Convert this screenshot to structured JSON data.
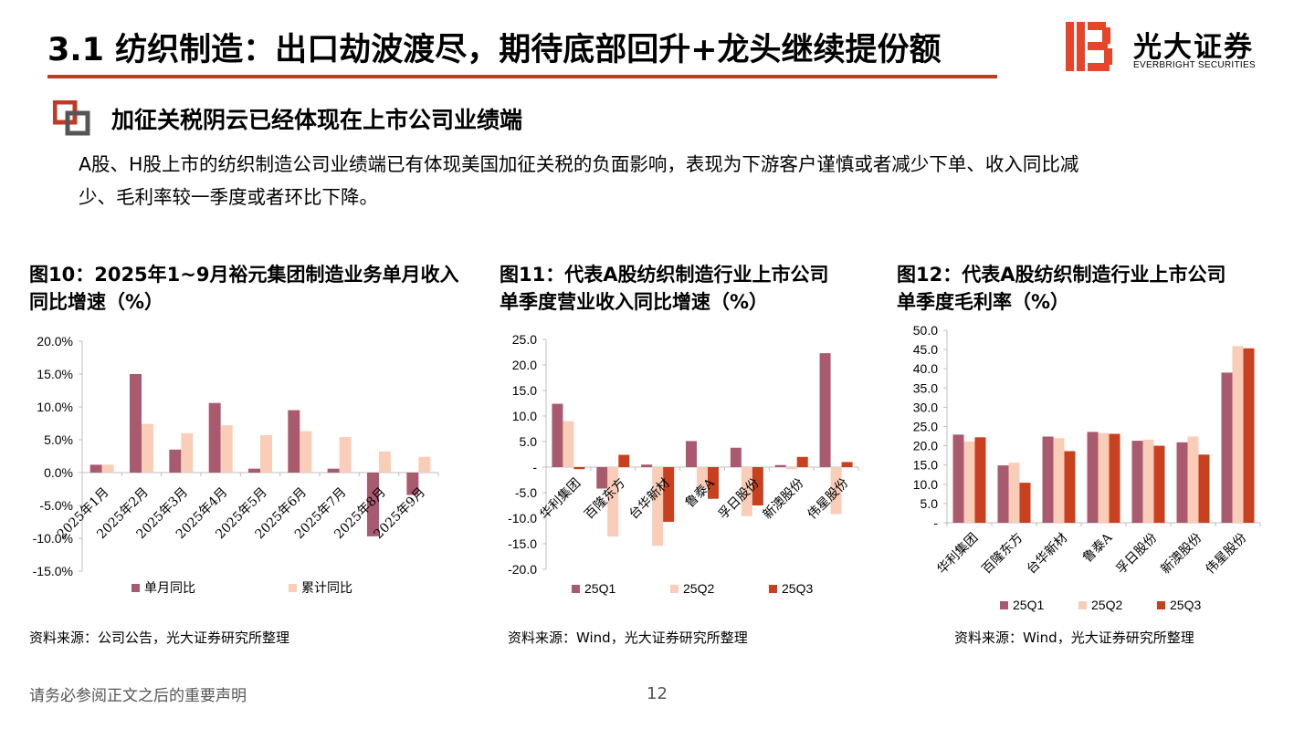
{
  "page": {
    "title": "3.1 纺织制造：出口劫波渡尽，期待底部回升+龙头继续提份额",
    "logo_cn": "光大证券",
    "logo_en": "EVERBRIGHT SECURITIES",
    "section_heading": "加征关税阴云已经体现在上市公司业绩端",
    "body_line1": "A股、H股上市的纺织制造公司业绩端已有体现美国加征关税的负面影响，表现为下游客户谨慎或者减少下单、收入同比减",
    "body_line2": "少、毛利率较一季度或者环比下降。",
    "footer_note": "请务必参阅正文之后的重要声明",
    "page_number": "12",
    "colors": {
      "accent": "#c23a26",
      "series1": "#a95a6f",
      "series2": "#f9cdb8",
      "series3": "#c9401f"
    }
  },
  "chart_data": [
    {
      "type": "bar",
      "title_line1": "图10：2025年1~9月裕元集团制造业务单月收入",
      "title_line2": "同比增速（%）",
      "categories": [
        "2025年1月",
        "2025年2月",
        "2025年3月",
        "2025年4月",
        "2025年5月",
        "2025年6月",
        "2025年7月",
        "2025年8月",
        "2025年9月"
      ],
      "series": [
        {
          "name": "单月同比",
          "values": [
            1.2,
            15.0,
            3.5,
            10.6,
            0.6,
            9.5,
            0.6,
            -9.7,
            -3.4
          ]
        },
        {
          "name": "累计同比",
          "values": [
            1.2,
            7.4,
            6.0,
            7.2,
            5.7,
            6.3,
            5.4,
            3.2,
            2.4
          ]
        }
      ],
      "ylim": [
        -15,
        20
      ],
      "yticks": [
        "20.0%",
        "15.0%",
        "10.0%",
        "5.0%",
        "0.0%",
        "-5.0%",
        "-10.0%",
        "-15.0%"
      ],
      "source": "资料来源：公司公告，光大证券研究所整理"
    },
    {
      "type": "bar",
      "title_line1": "图11：代表A股纺织制造行业上市公司",
      "title_line2": "单季度营业收入同比增速（%）",
      "categories": [
        "华利集团",
        "百隆东方",
        "台华新材",
        "鲁泰A",
        "孚日股份",
        "新澳股份",
        "伟星股份"
      ],
      "series": [
        {
          "name": "25Q1",
          "values": [
            12.4,
            -4.2,
            0.5,
            5.1,
            3.8,
            0.4,
            22.3
          ]
        },
        {
          "name": "25Q2",
          "values": [
            9.0,
            -13.6,
            -15.4,
            -4.2,
            -9.6,
            -0.4,
            -9.2
          ]
        },
        {
          "name": "25Q3",
          "values": [
            -0.4,
            2.4,
            -10.7,
            -6.2,
            -7.5,
            2.0,
            1.0
          ]
        }
      ],
      "ylim": [
        -20,
        25
      ],
      "yticks": [
        "25.0",
        "20.0",
        "15.0",
        "10.0",
        "5.0",
        "-",
        "-5.0",
        "-10.0",
        "-15.0",
        "-20.0"
      ],
      "source": "资料来源：Wind，光大证券研究所整理"
    },
    {
      "type": "bar",
      "title_line1": "图12：代表A股纺织制造行业上市公司",
      "title_line2": "单季度毛利率（%）",
      "categories": [
        "华利集团",
        "百隆东方",
        "台华新材",
        "鲁泰A",
        "孚日股份",
        "新澳股份",
        "伟星股份"
      ],
      "series": [
        {
          "name": "25Q1",
          "values": [
            22.9,
            14.9,
            22.4,
            23.6,
            21.3,
            20.9,
            39.0
          ]
        },
        {
          "name": "25Q2",
          "values": [
            21.1,
            15.6,
            22.0,
            23.3,
            21.6,
            22.4,
            45.9
          ]
        },
        {
          "name": "25Q3",
          "values": [
            22.2,
            10.4,
            18.6,
            23.1,
            20.0,
            17.7,
            45.3
          ]
        }
      ],
      "ylim": [
        0,
        50
      ],
      "yticks": [
        "50.0",
        "45.0",
        "40.0",
        "35.0",
        "30.0",
        "25.0",
        "20.0",
        "15.0",
        "10.0",
        "5.0",
        "-"
      ],
      "source": "资料来源：Wind，光大证券研究所整理"
    }
  ]
}
